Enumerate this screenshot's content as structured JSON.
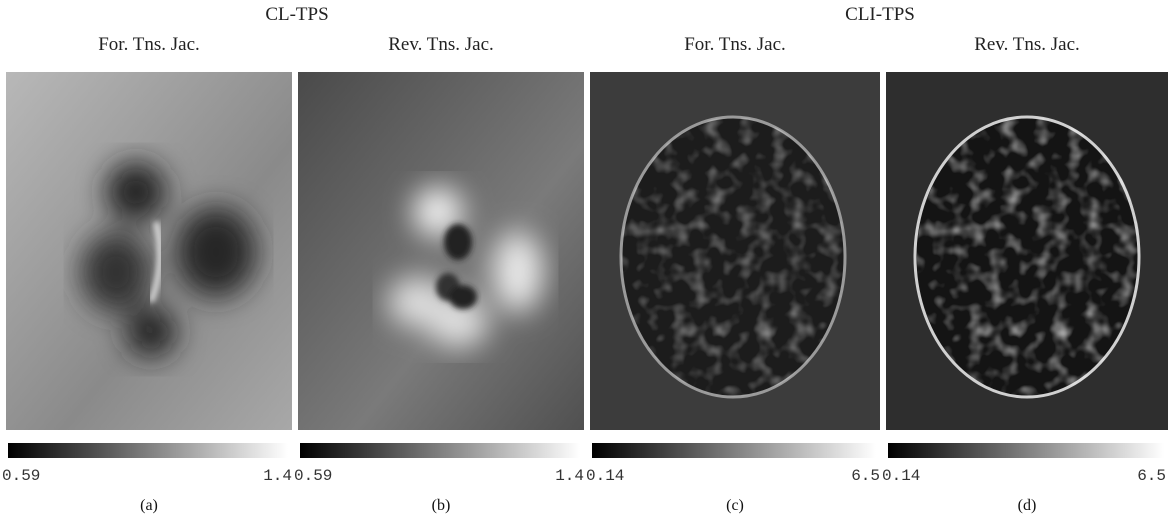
{
  "groups": [
    {
      "title": "CL-TPS"
    },
    {
      "title": "CLI-TPS"
    }
  ],
  "panels": [
    {
      "title": "For. Tns. Jac.",
      "colorbar": {
        "min": 0.59,
        "max": 1.4
      },
      "caption": "(a)"
    },
    {
      "title": "Rev. Tns. Jac.",
      "colorbar": {
        "min": 0.59,
        "max": 1.4
      },
      "caption": "(b)"
    },
    {
      "title": "For. Tns. Jac.",
      "colorbar": {
        "min": 0.14,
        "max": 6.5
      },
      "caption": "(c)"
    },
    {
      "title": "Rev. Tns. Jac.",
      "colorbar": {
        "min": 0.14,
        "max": 6.5
      },
      "caption": "(d)"
    }
  ]
}
